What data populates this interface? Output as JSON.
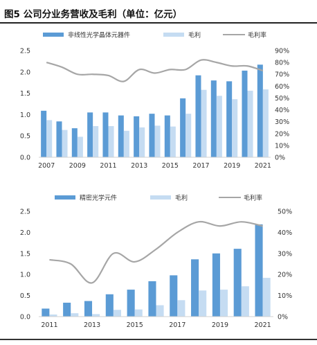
{
  "figure": {
    "title": "图5 公司分业务营收及毛利（单位：亿元）"
  },
  "colors": {
    "bar_dark": "#5b9bd5",
    "bar_light": "#c5dcf2",
    "line": "#a6a6a6",
    "axis": "#d0d0d0"
  },
  "chart_data": [
    {
      "type": "bar",
      "legend": [
        "非线性光学晶体元器件",
        "毛利",
        "毛利率"
      ],
      "x": [
        2007,
        2008,
        2009,
        2010,
        2011,
        2012,
        2013,
        2014,
        2015,
        2016,
        2017,
        2018,
        2019,
        2020,
        2021
      ],
      "x_tick_labels": [
        "2007",
        "2009",
        "2011",
        "2013",
        "2015",
        "2017",
        "2019",
        "2021"
      ],
      "series": [
        {
          "name": "非线性光学晶体元器件",
          "kind": "bar",
          "axis": "left",
          "values": [
            1.09,
            0.84,
            0.68,
            1.05,
            1.05,
            0.98,
            0.96,
            1.02,
            0.98,
            1.38,
            1.92,
            1.8,
            1.78,
            2.03,
            2.17
          ]
        },
        {
          "name": "毛利",
          "kind": "bar",
          "axis": "left",
          "values": [
            0.87,
            0.64,
            0.48,
            0.73,
            0.73,
            0.62,
            0.7,
            0.74,
            0.72,
            1.02,
            1.58,
            1.44,
            1.36,
            1.56,
            1.59
          ]
        },
        {
          "name": "毛利率",
          "kind": "line",
          "axis": "right",
          "values": [
            0.8,
            0.76,
            0.7,
            0.7,
            0.69,
            0.64,
            0.74,
            0.71,
            0.74,
            0.74,
            0.82,
            0.8,
            0.77,
            0.77,
            0.73
          ]
        }
      ],
      "y_left": {
        "ylim": [
          0,
          2.5
        ],
        "ticks": [
          "0.0",
          "0.5",
          "1.0",
          "1.5",
          "2.0",
          "2.5"
        ]
      },
      "y_right": {
        "ylim": [
          0,
          0.9
        ],
        "ticks": [
          "0%",
          "10%",
          "20%",
          "30%",
          "40%",
          "50%",
          "60%",
          "70%",
          "80%",
          "90%"
        ]
      },
      "legend_position": "top"
    },
    {
      "type": "bar",
      "legend": [
        "精密光学元件",
        "毛利",
        "毛利率"
      ],
      "x": [
        2011,
        2012,
        2013,
        2014,
        2015,
        2016,
        2017,
        2018,
        2019,
        2020,
        2021
      ],
      "x_tick_labels": [
        "2011",
        "2013",
        "2015",
        "2017",
        "2019",
        "2021"
      ],
      "series": [
        {
          "name": "精密光学元件",
          "kind": "bar",
          "axis": "left",
          "values": [
            0.19,
            0.33,
            0.37,
            0.53,
            0.64,
            0.84,
            0.98,
            1.36,
            1.5,
            1.61,
            2.19
          ]
        },
        {
          "name": "毛利",
          "kind": "bar",
          "axis": "left",
          "values": [
            0.05,
            0.08,
            0.06,
            0.16,
            0.17,
            0.27,
            0.39,
            0.62,
            0.64,
            0.72,
            0.92
          ]
        },
        {
          "name": "毛利率",
          "kind": "line",
          "axis": "right",
          "values": [
            0.27,
            0.25,
            0.16,
            0.3,
            0.26,
            0.32,
            0.4,
            0.45,
            0.43,
            0.45,
            0.43
          ]
        }
      ],
      "y_left": {
        "ylim": [
          0,
          2.5
        ],
        "ticks": [
          "0.0",
          "0.5",
          "1.0",
          "1.5",
          "2.0",
          "2.5"
        ]
      },
      "y_right": {
        "ylim": [
          0,
          0.5
        ],
        "ticks": [
          "0%",
          "10%",
          "20%",
          "30%",
          "40%",
          "50%"
        ]
      },
      "legend_position": "top"
    }
  ]
}
